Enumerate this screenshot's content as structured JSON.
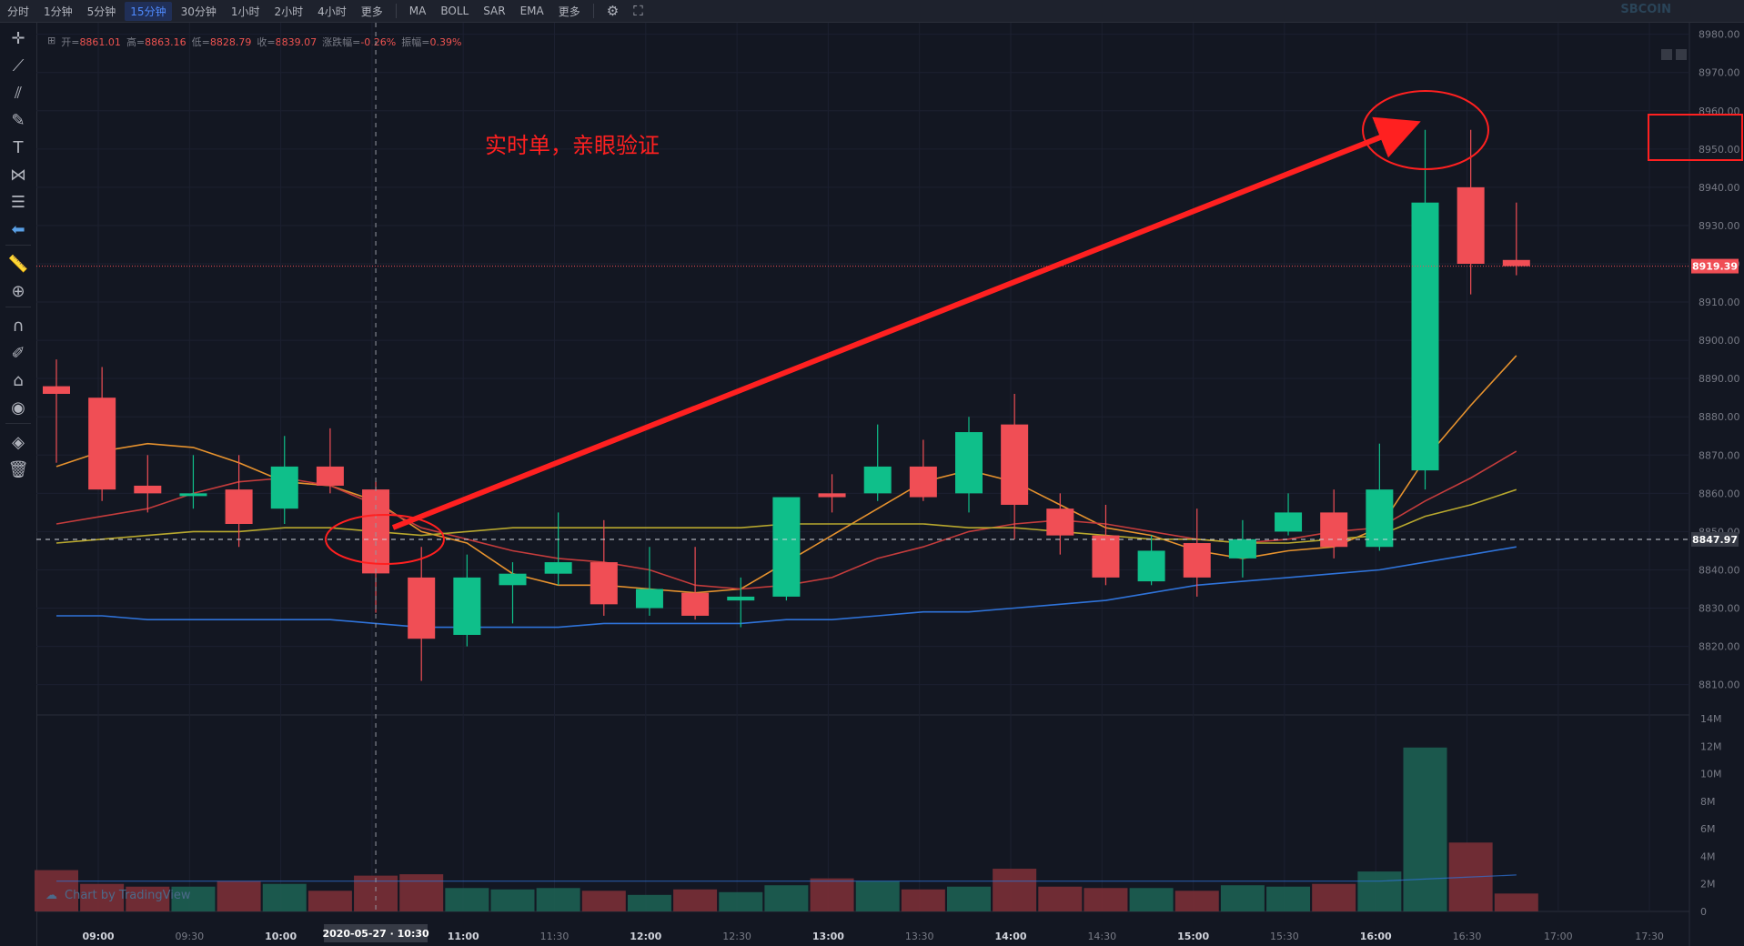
{
  "toolbar": {
    "intervals": [
      "分时",
      "1分钟",
      "5分钟",
      "15分钟",
      "30分钟",
      "1小时",
      "2小时",
      "4小时",
      "更多"
    ],
    "active_interval": "15分钟",
    "indicators": [
      "MA",
      "BOLL",
      "SAR",
      "EMA",
      "更多"
    ],
    "logo": "SBCOIN"
  },
  "legend": {
    "open_label": "开=",
    "open": "8861.01",
    "high_label": "高=",
    "high": "8863.16",
    "low_label": "低=",
    "low": "8828.79",
    "close_label": "收=",
    "close": "8839.07",
    "change_label": "涨跌幅=",
    "change": "-0.26%",
    "amplitude_label": "振幅=",
    "amplitude": "0.39%"
  },
  "watermark": "Chart by TradingView",
  "colors": {
    "background": "#131722",
    "up": "#26a69a",
    "down": "#ef5350",
    "up_candle": "#0fbf8a",
    "down_candle": "#f04e55",
    "ma5": "#e6922e",
    "ma10": "#c43c3c",
    "ma20": "#b8a82e",
    "ma60": "#2f73d9",
    "annotation": "#ff2020"
  },
  "chart_data": {
    "type": "candlestick",
    "annotation_text": "实时单，亲眼验证",
    "crosshair_date_label": "2020-05-27 · 10:30",
    "current_price": 8919.39,
    "crosshair_price": 8847.97,
    "y_ticks": [
      8810,
      8820,
      8830,
      8840,
      8850,
      8860,
      8870,
      8880,
      8890,
      8900,
      8910,
      8920,
      8930,
      8940,
      8950,
      8960,
      8970,
      8980
    ],
    "y_tick_labels": [
      "8810.00",
      "8820.00",
      "8830.00",
      "8840.00",
      "8850.00",
      "8860.00",
      "8870.00",
      "8880.00",
      "8890.00",
      "8900.00",
      "8910.00",
      "8920.00",
      "8930.00",
      "8940.00",
      "8950.00",
      "8960.00",
      "8970.00",
      "8980.00"
    ],
    "x_tick_labels": [
      "09:00",
      "09:30",
      "10:00",
      "10:30",
      "11:00",
      "11:30",
      "12:00",
      "12:30",
      "13:00",
      "13:30",
      "14:00",
      "14:30",
      "15:00",
      "15:30",
      "16:00",
      "16:30",
      "17:00",
      "17:30"
    ],
    "x_bold": [
      "09:00",
      "10:00",
      "11:00",
      "12:00",
      "13:00",
      "14:00",
      "15:00",
      "16:00"
    ],
    "volume_ticks": [
      "0",
      "2M",
      "4M",
      "6M",
      "8M",
      "10M",
      "12M",
      "14M"
    ],
    "candles": [
      {
        "o": 8888,
        "h": 8895,
        "l": 8868,
        "c": 8886,
        "v": 3.0
      },
      {
        "o": 8885,
        "h": 8893,
        "l": 8858,
        "c": 8861,
        "v": 2.0
      },
      {
        "o": 8862,
        "h": 8870,
        "l": 8855,
        "c": 8860,
        "v": 1.8
      },
      {
        "o": 8860,
        "h": 8870,
        "l": 8856,
        "c": 8860,
        "v": 1.8
      },
      {
        "o": 8861,
        "h": 8870,
        "l": 8846,
        "c": 8852,
        "v": 2.2
      },
      {
        "o": 8856,
        "h": 8875,
        "l": 8852,
        "c": 8867,
        "v": 2.0
      },
      {
        "o": 8867,
        "h": 8877,
        "l": 8860,
        "c": 8862,
        "v": 1.5
      },
      {
        "o": 8861.01,
        "h": 8863.16,
        "l": 8828.79,
        "c": 8839.07,
        "v": 2.6
      },
      {
        "o": 8838,
        "h": 8846,
        "l": 8811,
        "c": 8822,
        "v": 2.7
      },
      {
        "o": 8823,
        "h": 8844,
        "l": 8820,
        "c": 8838,
        "v": 1.7
      },
      {
        "o": 8836,
        "h": 8842,
        "l": 8826,
        "c": 8839,
        "v": 1.6
      },
      {
        "o": 8839,
        "h": 8855,
        "l": 8836,
        "c": 8842,
        "v": 1.7
      },
      {
        "o": 8842,
        "h": 8853,
        "l": 8828,
        "c": 8831,
        "v": 1.5
      },
      {
        "o": 8830,
        "h": 8846,
        "l": 8828,
        "c": 8835,
        "v": 1.2
      },
      {
        "o": 8834,
        "h": 8846,
        "l": 8827,
        "c": 8828,
        "v": 1.6
      },
      {
        "o": 8832,
        "h": 8838,
        "l": 8825,
        "c": 8833,
        "v": 1.4
      },
      {
        "o": 8833,
        "h": 8858,
        "l": 8832,
        "c": 8859,
        "v": 1.9
      },
      {
        "o": 8860,
        "h": 8865,
        "l": 8855,
        "c": 8859,
        "v": 2.4
      },
      {
        "o": 8860,
        "h": 8878,
        "l": 8858,
        "c": 8867,
        "v": 2.2
      },
      {
        "o": 8867,
        "h": 8874,
        "l": 8858,
        "c": 8859,
        "v": 1.6
      },
      {
        "o": 8860,
        "h": 8880,
        "l": 8855,
        "c": 8876,
        "v": 1.8
      },
      {
        "o": 8878,
        "h": 8886,
        "l": 8848,
        "c": 8857,
        "v": 3.1
      },
      {
        "o": 8856,
        "h": 8860,
        "l": 8844,
        "c": 8849,
        "v": 1.8
      },
      {
        "o": 8849,
        "h": 8857,
        "l": 8836,
        "c": 8838,
        "v": 1.7
      },
      {
        "o": 8837,
        "h": 8849,
        "l": 8836,
        "c": 8845,
        "v": 1.7
      },
      {
        "o": 8847,
        "h": 8856,
        "l": 8833,
        "c": 8838,
        "v": 1.5
      },
      {
        "o": 8843,
        "h": 8853,
        "l": 8838,
        "c": 8848,
        "v": 1.9
      },
      {
        "o": 8850,
        "h": 8860,
        "l": 8849,
        "c": 8855,
        "v": 1.8
      },
      {
        "o": 8855,
        "h": 8861,
        "l": 8843,
        "c": 8846,
        "v": 2.0
      },
      {
        "o": 8846,
        "h": 8873,
        "l": 8845,
        "c": 8861,
        "v": 2.9
      },
      {
        "o": 8866,
        "h": 8955,
        "l": 8861,
        "c": 8936,
        "v": 11.9
      },
      {
        "o": 8940,
        "h": 8955,
        "l": 8912,
        "c": 8920,
        "v": 5.0
      },
      {
        "o": 8921,
        "h": 8936,
        "l": 8917,
        "c": 8919.39,
        "v": 1.3
      }
    ],
    "ma_lines": [
      {
        "name": "MA5",
        "color": "#e6922e",
        "values": [
          8867,
          8871,
          8873,
          8872,
          8868,
          8863,
          8862,
          8858,
          8850,
          8847,
          8839,
          8836,
          8836,
          8835,
          8834,
          8835,
          8842,
          8849,
          8856,
          8863,
          8866,
          8863,
          8857,
          8851,
          8849,
          8845,
          8843,
          8845,
          8846,
          8851,
          8869,
          8883,
          8896
        ]
      },
      {
        "name": "MA10",
        "color": "#c43c3c",
        "values": [
          8852,
          8854,
          8856,
          8860,
          8863,
          8864,
          8862,
          8857,
          8851,
          8848,
          8845,
          8843,
          8842,
          8840,
          8836,
          8835,
          8836,
          8838,
          8843,
          8846,
          8850,
          8852,
          8853,
          8852,
          8850,
          8848,
          8847,
          8848,
          8850,
          8851,
          8858,
          8864,
          8871
        ]
      },
      {
        "name": "MA20",
        "color": "#b8a82e",
        "values": [
          8847,
          8848,
          8849,
          8850,
          8850,
          8851,
          8851,
          8850,
          8849,
          8850,
          8851,
          8851,
          8851,
          8851,
          8851,
          8851,
          8852,
          8852,
          8852,
          8852,
          8851,
          8851,
          8850,
          8849,
          8848,
          8848,
          8847,
          8847,
          8848,
          8849,
          8854,
          8857,
          8861
        ]
      },
      {
        "name": "MA60",
        "color": "#2f73d9",
        "values": [
          8828,
          8828,
          8827,
          8827,
          8827,
          8827,
          8827,
          8826,
          8825,
          8825,
          8825,
          8825,
          8826,
          8826,
          8826,
          8826,
          8827,
          8827,
          8828,
          8829,
          8829,
          8830,
          8831,
          8832,
          8834,
          8836,
          8837,
          8838,
          8839,
          8840,
          8842,
          8844,
          8846
        ]
      }
    ]
  }
}
